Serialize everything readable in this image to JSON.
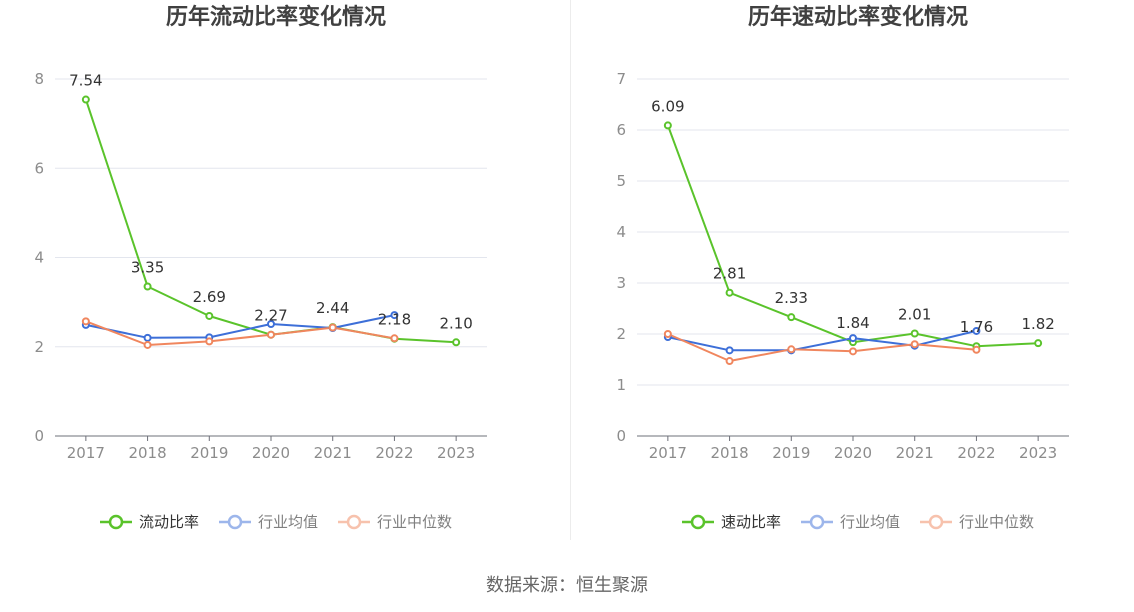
{
  "chart_data": [
    {
      "type": "line",
      "title": "历年流动比率变化情况",
      "categories": [
        "2017",
        "2018",
        "2019",
        "2020",
        "2021",
        "2022",
        "2023"
      ],
      "ylim": [
        0,
        8
      ],
      "yticks": [
        0,
        2,
        4,
        6,
        8
      ],
      "grid": true,
      "legend": "bottom",
      "series": [
        {
          "name": "流动比率",
          "color": "#5ac32b",
          "show_labels": true,
          "values": [
            7.54,
            3.35,
            2.69,
            2.27,
            2.44,
            2.18,
            2.1
          ]
        },
        {
          "name": "行业均值",
          "color": "#3d6fd8",
          "values": [
            2.49,
            2.2,
            2.21,
            2.51,
            2.42,
            2.71,
            null
          ]
        },
        {
          "name": "行业中位数",
          "color": "#f0865e",
          "values": [
            2.57,
            2.04,
            2.12,
            2.27,
            2.43,
            2.19,
            null
          ]
        }
      ]
    },
    {
      "type": "line",
      "title": "历年速动比率变化情况",
      "categories": [
        "2017",
        "2018",
        "2019",
        "2020",
        "2021",
        "2022",
        "2023"
      ],
      "ylim": [
        0,
        7
      ],
      "yticks": [
        0,
        1,
        2,
        3,
        4,
        5,
        6,
        7
      ],
      "grid": true,
      "legend": "bottom",
      "series": [
        {
          "name": "速动比率",
          "color": "#5ac32b",
          "show_labels": true,
          "values": [
            6.09,
            2.81,
            2.33,
            1.84,
            2.01,
            1.76,
            1.82
          ]
        },
        {
          "name": "行业均值",
          "color": "#3d6fd8",
          "values": [
            1.94,
            1.68,
            1.68,
            1.92,
            1.77,
            2.06,
            null
          ]
        },
        {
          "name": "行业中位数",
          "color": "#f0865e",
          "values": [
            2.0,
            1.47,
            1.7,
            1.66,
            1.8,
            1.69,
            null
          ]
        }
      ]
    }
  ],
  "source": "数据来源：恒生聚源"
}
